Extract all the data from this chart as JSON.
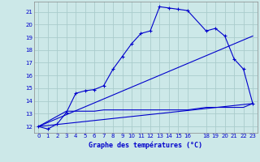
{
  "title": "Graphe des températures (°C)",
  "bg_color": "#cce8e8",
  "grid_color": "#aacccc",
  "line_color": "#0000cc",
  "xlim": [
    -0.5,
    23.5
  ],
  "ylim": [
    11.5,
    21.8
  ],
  "yticks": [
    12,
    13,
    14,
    15,
    16,
    17,
    18,
    19,
    20,
    21
  ],
  "xticks": [
    0,
    1,
    2,
    3,
    4,
    5,
    6,
    7,
    8,
    9,
    10,
    11,
    12,
    13,
    14,
    15,
    16,
    18,
    19,
    20,
    21,
    22,
    23
  ],
  "curve1_x": [
    0,
    1,
    2,
    3,
    4,
    5,
    6,
    7,
    8,
    9,
    10,
    11,
    12,
    13,
    14,
    15,
    16,
    18,
    19,
    20,
    21,
    22,
    23
  ],
  "curve1_y": [
    12.0,
    11.8,
    12.2,
    13.1,
    14.6,
    14.8,
    14.9,
    15.2,
    16.5,
    17.5,
    18.5,
    19.3,
    19.5,
    21.4,
    21.3,
    21.2,
    21.1,
    19.5,
    19.7,
    19.1,
    17.3,
    16.5,
    13.8
  ],
  "curve2_x": [
    0,
    3,
    4,
    5,
    6,
    7,
    8,
    9,
    10,
    11,
    12,
    13,
    14,
    15,
    16,
    18,
    19,
    20,
    21,
    22,
    23
  ],
  "curve2_y": [
    12.0,
    13.2,
    13.2,
    13.2,
    13.2,
    13.3,
    13.3,
    13.3,
    13.3,
    13.3,
    13.3,
    13.3,
    13.3,
    13.3,
    13.3,
    13.5,
    13.5,
    13.5,
    13.5,
    13.5,
    13.8
  ],
  "curve3_x": [
    0,
    23
  ],
  "curve3_y": [
    12.0,
    13.8
  ],
  "curve4_x": [
    0,
    23
  ],
  "curve4_y": [
    12.0,
    19.1
  ]
}
